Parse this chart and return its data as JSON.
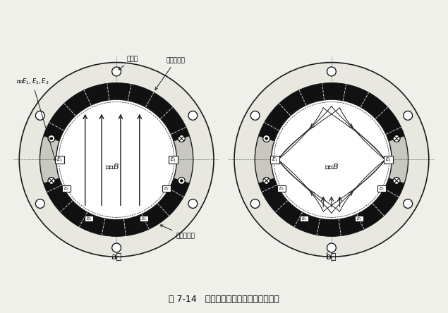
{
  "title": "图 7-14   非满管电磁流量计的串励和反励",
  "label_a": "a）",
  "label_b": "b）",
  "bg_color": "#f0f0eb",
  "line_color": "#1a1a1a",
  "outer_facecolor": "#e8e8e0",
  "coil_black": "#111111",
  "coil_gray": "#b0b0a0",
  "inner_white": "#ffffff",
  "ann_fontsize": 6.5,
  "title_fontsize": 9
}
